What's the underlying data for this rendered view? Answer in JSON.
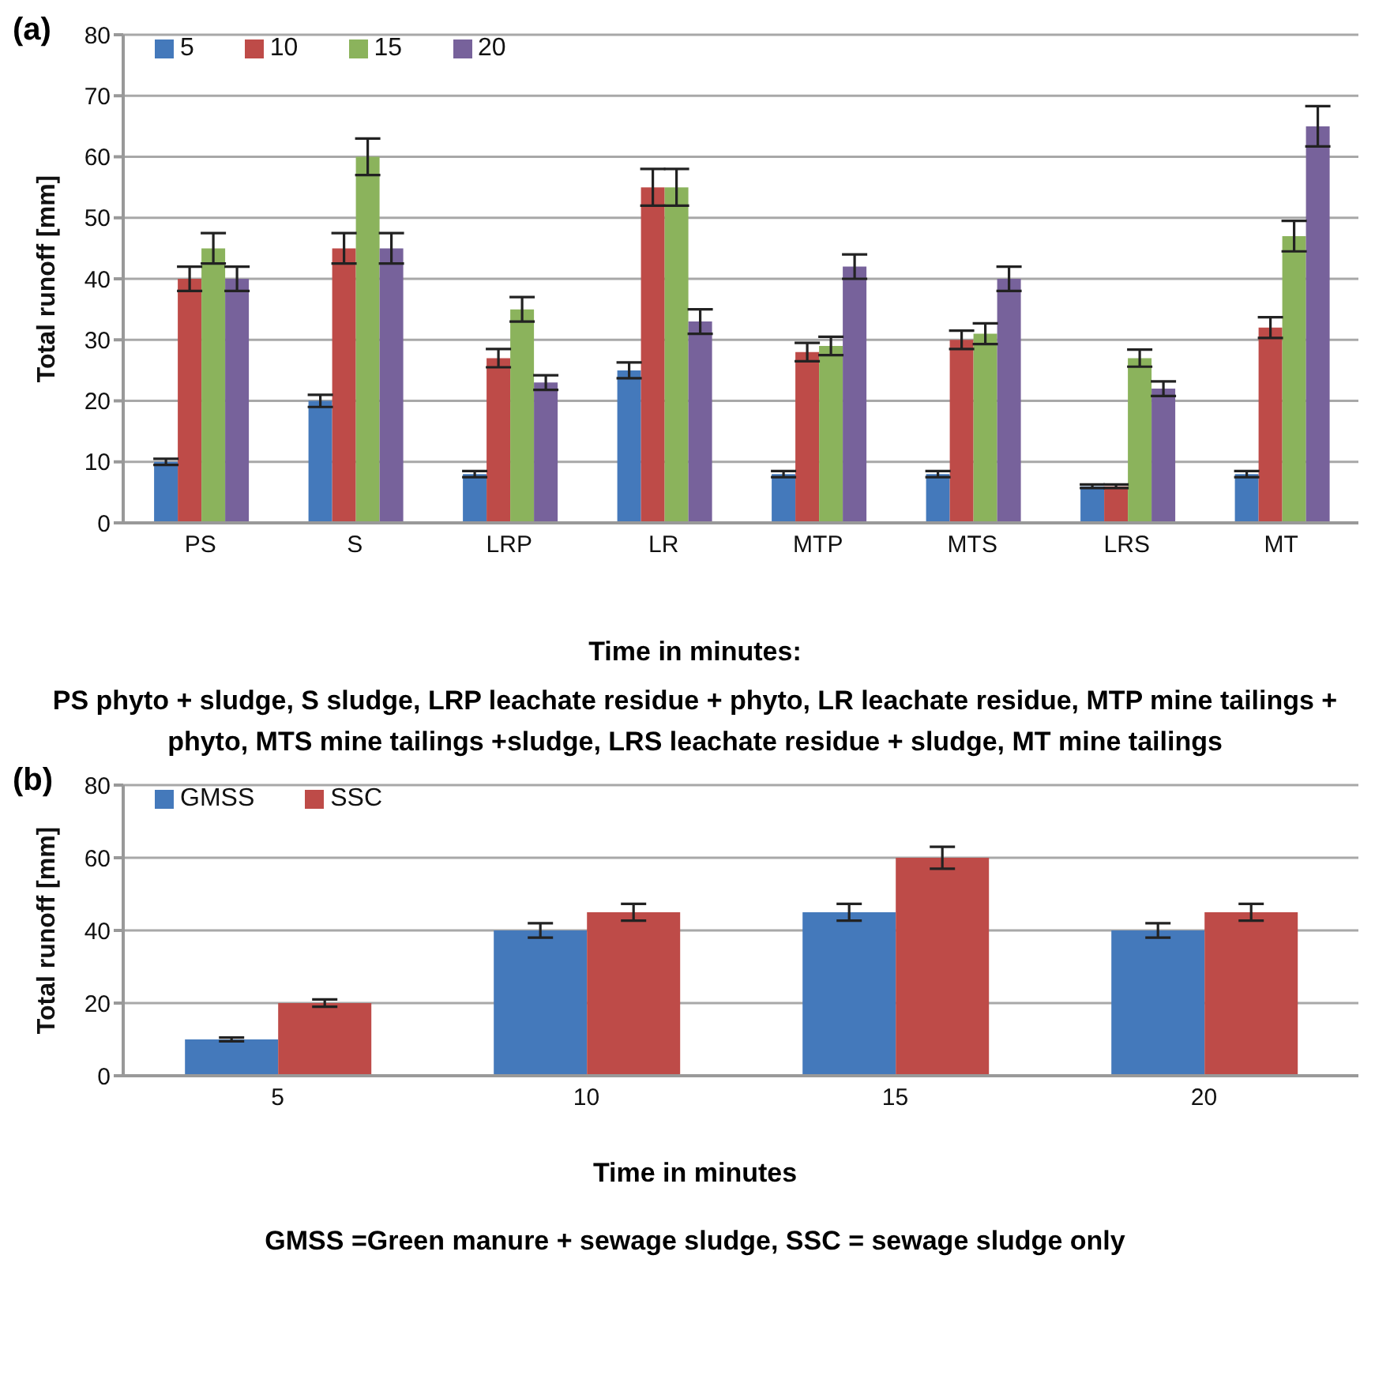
{
  "chart_data": [
    {
      "type": "bar",
      "title": "(a)",
      "ylabel": "Total runoff [mm]",
      "xlabel": "Time in minutes:",
      "categories": [
        "PS",
        "S",
        "LRP",
        "LR",
        "MTP",
        "MTS",
        "LRS",
        "MT"
      ],
      "series": [
        {
          "name": "5",
          "color": "#4479bb",
          "values": [
            10,
            20,
            8,
            25,
            8,
            8,
            6,
            8
          ],
          "errors": [
            0.5,
            1,
            0.5,
            1.3,
            0.5,
            0.5,
            0.3,
            0.5
          ]
        },
        {
          "name": "10",
          "color": "#be4b48",
          "values": [
            40,
            45,
            27,
            55,
            28,
            30,
            6,
            32
          ],
          "errors": [
            2,
            2.5,
            1.5,
            3,
            1.5,
            1.5,
            0.3,
            1.7
          ]
        },
        {
          "name": "15",
          "color": "#8bb35c",
          "values": [
            45,
            60,
            35,
            55,
            29,
            31,
            27,
            47
          ],
          "errors": [
            2.5,
            3,
            2,
            3,
            1.5,
            1.7,
            1.4,
            2.5
          ]
        },
        {
          "name": "20",
          "color": "#77629b",
          "values": [
            40,
            45,
            23,
            33,
            42,
            40,
            22,
            65
          ],
          "errors": [
            2,
            2.5,
            1.2,
            2,
            2,
            2,
            1.2,
            3.3
          ]
        }
      ],
      "ylim": [
        0,
        80
      ],
      "yticks": [
        0,
        10,
        20,
        30,
        40,
        50,
        60,
        70,
        80
      ],
      "grid": "y",
      "legend": "top left",
      "annotations": [
        "PS phyto + sludge, S sludge, LRP leachate residue + phyto, LR leachate residue, MTP mine tailings + phyto, MTS mine tailings +sludge, LRS leachate residue + sludge, MT mine tailings"
      ]
    },
    {
      "type": "bar",
      "title": "(b)",
      "ylabel": "Total runoff [mm]",
      "xlabel": "Time in minutes",
      "categories": [
        "5",
        "10",
        "15",
        "20"
      ],
      "series": [
        {
          "name": "GMSS",
          "color": "#4479bb",
          "values": [
            10,
            40,
            45,
            40
          ],
          "errors": [
            0.5,
            2,
            2.3,
            2
          ]
        },
        {
          "name": "SSC",
          "color": "#be4b48",
          "values": [
            20,
            45,
            60,
            45
          ],
          "errors": [
            1,
            2.3,
            3,
            2.3
          ]
        }
      ],
      "ylim": [
        0,
        80
      ],
      "yticks": [
        0,
        20,
        40,
        60,
        80
      ],
      "grid": "y",
      "legend": "top left",
      "annotations": [
        "GMSS =Green manure + sewage sludge, SSC = sewage sludge only"
      ]
    }
  ]
}
